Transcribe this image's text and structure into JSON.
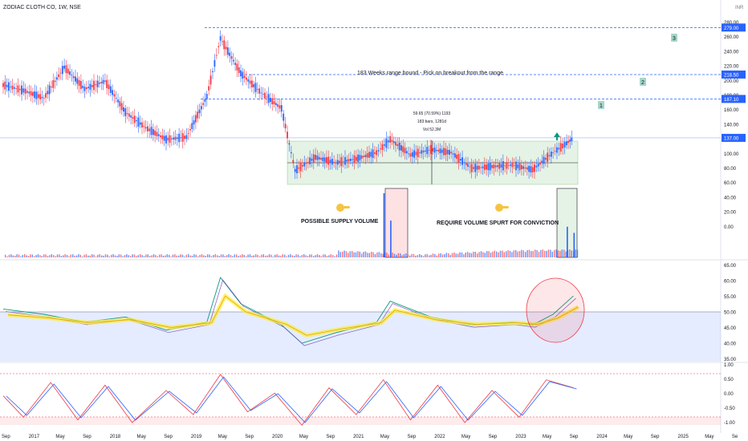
{
  "header": {
    "symbol": "ZODIAC CLOTH CO, 1W, NSE",
    "currency": "INR"
  },
  "price_axis": {
    "ticks": [
      "280.00",
      "260.00",
      "240.00",
      "220.00",
      "200.00",
      "180.00",
      "160.00",
      "140.00",
      "120.00",
      "100.00",
      "80.00",
      "60.00",
      "40.00",
      "20.00",
      "0.00"
    ],
    "badges": [
      {
        "label": "279.00",
        "value": 279,
        "color": "#2962ff"
      },
      {
        "label": "218.50",
        "value": 218.5,
        "color": "#2962ff"
      },
      {
        "label": "187.10",
        "value": 187.1,
        "color": "#2962ff"
      },
      {
        "label": "137.00",
        "value": 137,
        "color": "#2962ff"
      }
    ]
  },
  "rsi_axis": {
    "ticks": [
      "65.00",
      "60.00",
      "55.00",
      "50.00",
      "45.00",
      "40.00",
      "35.00"
    ]
  },
  "stoch_axis": {
    "ticks": [
      "1.00",
      "0.50",
      "0.00",
      "-0.50",
      "-1.00"
    ]
  },
  "time_axis": {
    "labels": [
      "Sep",
      "2017",
      "May",
      "Sep",
      "2018",
      "May",
      "Sep",
      "2019",
      "May",
      "Sep",
      "2020",
      "May",
      "Sep",
      "2021",
      "May",
      "Sep",
      "2022",
      "May",
      "Sep",
      "2023",
      "May",
      "Sep",
      "2024",
      "May",
      "Sep",
      "2025",
      "May",
      "Se"
    ]
  },
  "annotations": {
    "range_text": "183 Weeks range bound - Pick on breakout from the range",
    "measure_line1": "59.65 (70.59%) 1193",
    "measure_line2": "183 bars, 1281d",
    "measure_line3": "Vol 52.3M",
    "supply_text": "POSSIBLE SUPPLY VOLUME",
    "spurt_text": "REQUIRE VOLUME SPURT FOR CONVICTION",
    "target_labels": [
      "1",
      "2",
      "3"
    ]
  },
  "chart_data": {
    "type": "line",
    "title": "ZODIAC CLOTH CO, 1W, NSE",
    "price": {
      "x": [
        "2016-09",
        "2016-12",
        "2017-03",
        "2017-06",
        "2017-09",
        "2017-12",
        "2018-03",
        "2018-06",
        "2018-09",
        "2018-12",
        "2019-03",
        "2019-05",
        "2019-08",
        "2019-11",
        "2020-02",
        "2020-04",
        "2020-07",
        "2020-10",
        "2021-01",
        "2021-04",
        "2021-06",
        "2021-09",
        "2021-12",
        "2022-03",
        "2022-06",
        "2022-09",
        "2022-12",
        "2023-03",
        "2023-06",
        "2023-08",
        "2023-09"
      ],
      "close": [
        205,
        198,
        188,
        228,
        200,
        210,
        170,
        150,
        135,
        138,
        190,
        265,
        220,
        195,
        175,
        95,
        112,
        105,
        110,
        118,
        135,
        115,
        122,
        118,
        98,
        100,
        102,
        96,
        118,
        130,
        137
      ],
      "ylim": [
        75,
        300
      ]
    },
    "levels": [
      {
        "name": "1",
        "value": 187.1
      },
      {
        "name": "2",
        "value": 218.5
      },
      {
        "name": "3",
        "value": 279.0
      },
      {
        "name": "range_top",
        "value": 140
      },
      {
        "name": "range_bottom",
        "value": 82
      }
    ],
    "rsi": {
      "x": [
        "2016-09",
        "2017-03",
        "2017-09",
        "2018-03",
        "2018-09",
        "2019-03",
        "2019-05",
        "2019-08",
        "2020-02",
        "2020-05",
        "2020-10",
        "2021-04",
        "2021-06",
        "2021-12",
        "2022-06",
        "2022-12",
        "2023-03",
        "2023-06",
        "2023-09"
      ],
      "values": [
        50,
        48,
        45,
        47,
        42,
        45,
        62,
        52,
        44,
        37,
        41,
        45,
        53,
        47,
        44,
        45,
        44,
        48,
        55
      ],
      "ylim": [
        30,
        66
      ]
    },
    "stoch": {
      "x": [
        "2016-09",
        "2016-12",
        "2017-04",
        "2017-08",
        "2017-12",
        "2018-04",
        "2018-09",
        "2019-01",
        "2019-05",
        "2019-09",
        "2020-01",
        "2020-05",
        "2020-09",
        "2021-01",
        "2021-05",
        "2021-09",
        "2022-01",
        "2022-05",
        "2022-09",
        "2023-01",
        "2023-05",
        "2023-09"
      ],
      "values": [
        0.1,
        -0.7,
        0.6,
        -0.8,
        0.5,
        -0.9,
        0.3,
        -0.6,
        0.9,
        -0.5,
        0.2,
        -1.0,
        0.4,
        -0.6,
        0.7,
        -0.8,
        0.5,
        -0.9,
        0.3,
        -0.7,
        0.7,
        0.4
      ],
      "ylim": [
        -1.2,
        1.2
      ]
    },
    "volume": {
      "x": [
        "2021-05",
        "2021-06",
        "2023-08",
        "2023-09"
      ],
      "values": [
        52.3,
        30,
        25,
        20
      ],
      "unit": "M"
    }
  }
}
